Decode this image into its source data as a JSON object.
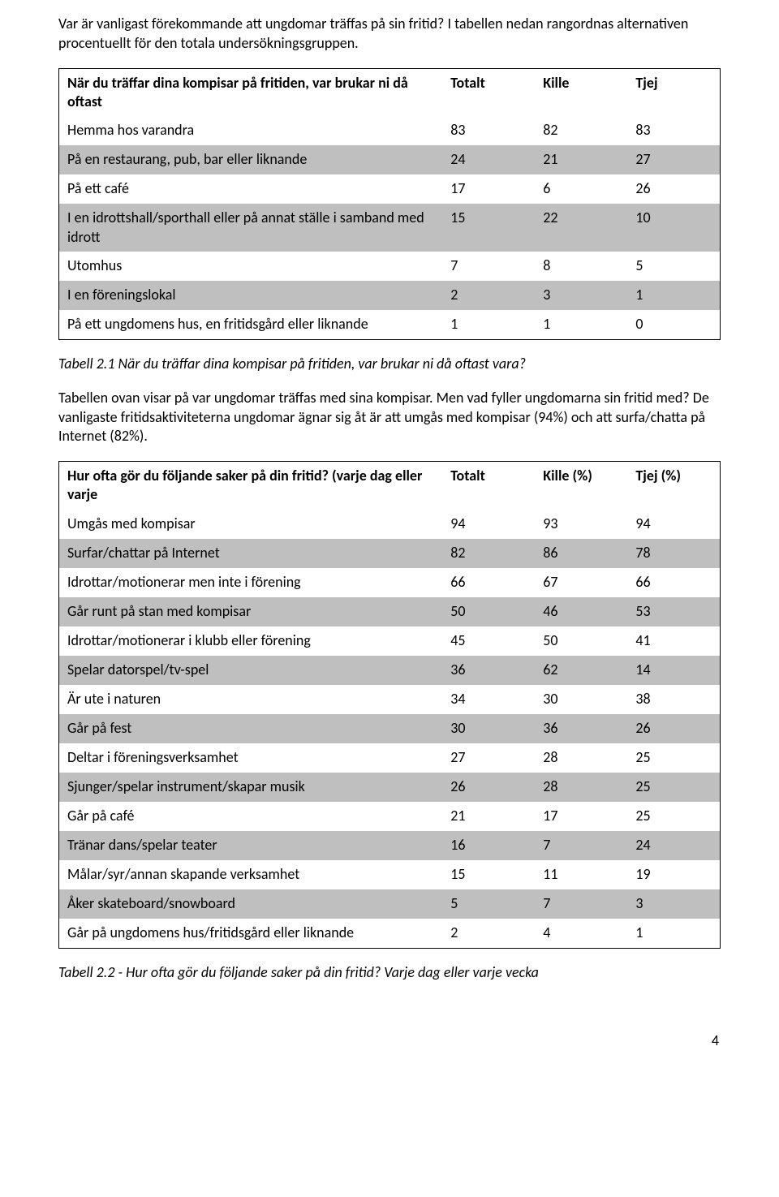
{
  "colors": {
    "text": "#000000",
    "background": "#ffffff",
    "row_light": "#ffffff",
    "row_dark": "#bfbfbf",
    "table_border": "#000000"
  },
  "typography": {
    "body_fontsize_pt": 11,
    "body_family": "Calibri",
    "caption_style": "italic"
  },
  "intro": "Var är vanligast förekommande att ungdomar träffas på sin fritid? I tabellen nedan rangordnas alternativen procentuellt för den totala undersökningsgruppen.",
  "table1": {
    "header": {
      "activity": "När du träffar dina kompisar på fritiden, var brukar ni då oftast",
      "total": "Totalt",
      "kille": "Kille",
      "tjej": "Tjej"
    },
    "columns": [
      "activity",
      "total",
      "kille",
      "tjej"
    ],
    "col_widths_pct": [
      58,
      14,
      14,
      14
    ],
    "rows": [
      {
        "activity": "Hemma hos varandra",
        "total": "83",
        "kille": "82",
        "tjej": "83"
      },
      {
        "activity": "På en restaurang, pub, bar eller liknande",
        "total": "24",
        "kille": "21",
        "tjej": "27"
      },
      {
        "activity": "På ett café",
        "total": "17",
        "kille": "6",
        "tjej": "26"
      },
      {
        "activity": "I en idrottshall/sporthall eller på annat ställe i samband med idrott",
        "total": "15",
        "kille": "22",
        "tjej": "10"
      },
      {
        "activity": "Utomhus",
        "total": "7",
        "kille": "8",
        "tjej": "5"
      },
      {
        "activity": "I en föreningslokal",
        "total": "2",
        "kille": "3",
        "tjej": "1"
      },
      {
        "activity": "På ett ungdomens hus, en fritidsgård eller liknande",
        "total": "1",
        "kille": "1",
        "tjej": "0"
      }
    ]
  },
  "caption1": "Tabell 2.1 När du träffar dina kompisar på fritiden, var brukar ni då oftast vara?",
  "para2": "Tabellen ovan visar på var ungdomar träffas med sina kompisar. Men vad fyller ungdomarna sin fritid med? De vanligaste fritidsaktiviteterna ungdomar ägnar sig åt är att umgås med kompisar (94%) och att surfa/chatta på Internet (82%).",
  "table2": {
    "header": {
      "activity": "Hur ofta gör du följande saker på din fritid? (varje dag eller varje",
      "total": "Totalt",
      "kille": "Kille (%)",
      "tjej": "Tjej (%)"
    },
    "columns": [
      "activity",
      "total",
      "kille",
      "tjej"
    ],
    "col_widths_pct": [
      58,
      14,
      14,
      14
    ],
    "rows": [
      {
        "activity": "Umgås med kompisar",
        "total": "94",
        "kille": "93",
        "tjej": "94"
      },
      {
        "activity": "Surfar/chattar på Internet",
        "total": "82",
        "kille": "86",
        "tjej": "78"
      },
      {
        "activity": "Idrottar/motionerar men inte i förening",
        "total": "66",
        "kille": "67",
        "tjej": "66"
      },
      {
        "activity": "Går runt på stan med kompisar",
        "total": "50",
        "kille": "46",
        "tjej": "53"
      },
      {
        "activity": "Idrottar/motionerar i klubb eller förening",
        "total": "45",
        "kille": "50",
        "tjej": "41"
      },
      {
        "activity": "Spelar datorspel/tv-spel",
        "total": "36",
        "kille": "62",
        "tjej": "14"
      },
      {
        "activity": "Är ute i naturen",
        "total": "34",
        "kille": "30",
        "tjej": "38"
      },
      {
        "activity": "Går på fest",
        "total": "30",
        "kille": "36",
        "tjej": "26"
      },
      {
        "activity": "Deltar i föreningsverksamhet",
        "total": "27",
        "kille": "28",
        "tjej": "25"
      },
      {
        "activity": "Sjunger/spelar instrument/skapar musik",
        "total": "26",
        "kille": "28",
        "tjej": "25"
      },
      {
        "activity": "Går på café",
        "total": "21",
        "kille": "17",
        "tjej": "25"
      },
      {
        "activity": "Tränar dans/spelar teater",
        "total": "16",
        "kille": "7",
        "tjej": "24"
      },
      {
        "activity": "Målar/syr/annan skapande verksamhet",
        "total": "15",
        "kille": "11",
        "tjej": "19"
      },
      {
        "activity": "Åker skateboard/snowboard",
        "total": "5",
        "kille": "7",
        "tjej": "3"
      },
      {
        "activity": "Går på ungdomens hus/fritidsgård eller liknande",
        "total": "2",
        "kille": "4",
        "tjej": "1"
      }
    ]
  },
  "caption2": "Tabell 2.2 - Hur ofta gör du följande saker på din fritid? Varje dag eller varje vecka",
  "page_number": "4"
}
